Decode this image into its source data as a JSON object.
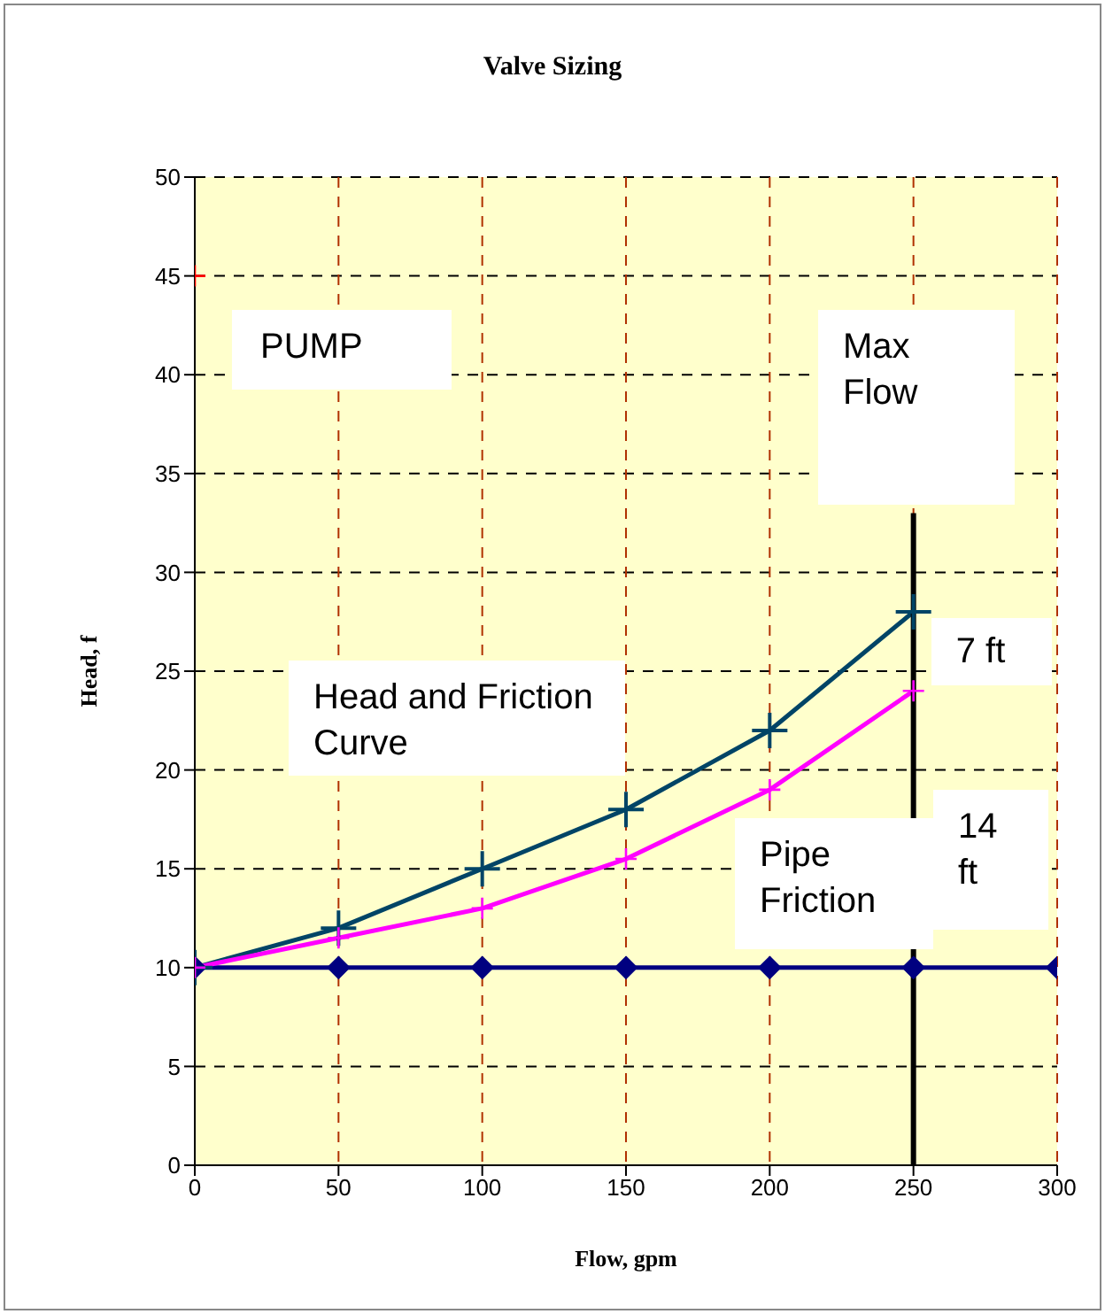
{
  "chart_data": {
    "type": "line",
    "title": "Valve Sizing",
    "xlabel": "Flow, gpm",
    "ylabel": "Head, f",
    "x": [
      0,
      50,
      100,
      150,
      200,
      250,
      300
    ],
    "series": [
      {
        "color": "#000080",
        "marker": "diamond",
        "values": [
          10,
          10,
          10,
          10,
          10,
          10,
          10
        ]
      },
      {
        "color": "#004466",
        "marker": "cross",
        "x": [
          0,
          50,
          100,
          150,
          200,
          250
        ],
        "values": [
          10,
          12,
          15,
          18,
          22,
          28
        ]
      },
      {
        "color": "#ff00ff",
        "marker": "cross",
        "x": [
          0,
          50,
          100,
          150,
          200,
          250
        ],
        "values": [
          10,
          11.5,
          13,
          15.5,
          19,
          24
        ]
      },
      {
        "type": "scatter",
        "color": "#ff0000",
        "marker": "cross",
        "x": [
          0
        ],
        "values": [
          45
        ]
      },
      {
        "color": "#000000",
        "marker": "none",
        "x": [
          250,
          250
        ],
        "values": [
          0,
          33
        ]
      }
    ],
    "xlim": [
      0,
      300
    ],
    "xticks": [
      0,
      50,
      100,
      150,
      200,
      250,
      300
    ],
    "ylim": [
      0,
      50
    ],
    "yticks": [
      0,
      5,
      10,
      15,
      20,
      25,
      30,
      35,
      40,
      45,
      50
    ],
    "grid": true,
    "annotations": [
      "PUMP",
      "Max Flow",
      "Head and Friction Curve",
      {
        "text": "7 ft",
        "x": 250,
        "y": 26
      },
      "14 ft",
      "Pipe Friction"
    ]
  }
}
